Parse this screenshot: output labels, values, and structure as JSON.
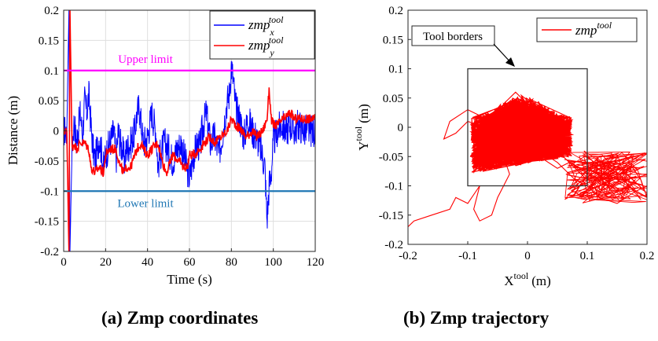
{
  "chart_data": [
    {
      "type": "line",
      "caption": "(a)  Zmp coordinates",
      "xlabel": "Time (s)",
      "ylabel": "Distance (m)",
      "xlim": [
        0,
        120
      ],
      "ylim": [
        -0.2,
        0.2
      ],
      "xticks": [
        "0",
        "20",
        "40",
        "60",
        "80",
        "100",
        "120"
      ],
      "yticks": [
        "-0.2",
        "-0.15",
        "-0.1",
        "-0.05",
        "0",
        "0.05",
        "0.1",
        "0.15",
        "0.2"
      ],
      "grid": true,
      "legend_position": "top-right",
      "legend": [
        {
          "base": "zmp",
          "sub": "x",
          "sup": "tool",
          "color": "#0000ff"
        },
        {
          "base": "zmp",
          "sub": "y",
          "sup": "tool",
          "color": "#ff0000"
        }
      ],
      "series": [
        {
          "color": "#0000ff",
          "x": [
            0,
            1.5,
            2.5,
            3,
            4,
            5,
            6,
            8,
            9,
            10,
            11,
            12,
            13,
            14,
            15,
            17,
            19,
            20,
            22,
            24,
            25,
            26,
            27,
            28,
            29,
            30,
            32,
            34,
            35,
            36,
            38,
            40,
            42,
            44,
            45,
            46,
            48,
            50,
            52,
            54,
            56,
            58,
            60,
            62,
            64,
            65,
            66,
            68,
            70,
            72,
            74,
            76,
            78,
            79,
            80,
            81,
            82,
            84,
            86,
            88,
            90,
            92,
            94,
            96,
            97,
            98,
            99,
            100,
            102,
            104,
            106,
            108,
            110,
            112,
            115,
            120
          ],
          "y": [
            0,
            0,
            0.2,
            -0.2,
            -0.03,
            0.02,
            -0.02,
            0.03,
            -0.01,
            0.05,
            0.03,
            0.06,
            0.01,
            -0.03,
            -0.05,
            -0.01,
            -0.06,
            -0.04,
            -0.02,
            0.0,
            -0.05,
            0.0,
            -0.02,
            -0.03,
            -0.05,
            -0.03,
            -0.02,
            0.0,
            0.03,
            0.04,
            -0.02,
            -0.01,
            0.03,
            0.0,
            -0.06,
            -0.04,
            -0.02,
            -0.03,
            -0.05,
            -0.03,
            -0.02,
            -0.05,
            -0.08,
            -0.04,
            -0.02,
            -0.03,
            0.0,
            0.03,
            -0.02,
            -0.01,
            -0.04,
            0.0,
            0.05,
            0.06,
            0.11,
            0.08,
            0.04,
            0.02,
            -0.01,
            0.02,
            0.0,
            -0.01,
            -0.03,
            -0.06,
            -0.15,
            -0.09,
            -0.07,
            -0.02,
            0.0,
            0.01,
            0.0,
            0.01,
            0.0,
            0.01,
            0.0,
            0.0
          ]
        },
        {
          "color": "#ff0000",
          "x": [
            0,
            1.5,
            2.5,
            3,
            4,
            5,
            6,
            8,
            10,
            12,
            13,
            15,
            17,
            19,
            20,
            22,
            25,
            27,
            29,
            30,
            32,
            35,
            37,
            38,
            40,
            42,
            45,
            47,
            49,
            50,
            52,
            55,
            57,
            59,
            60,
            62,
            65,
            67,
            70,
            72,
            75,
            78,
            80,
            82,
            85,
            87,
            90,
            92,
            95,
            97,
            98,
            99,
            100,
            102,
            105,
            108,
            110,
            112,
            115,
            120
          ],
          "y": [
            0,
            0,
            -0.2,
            0.2,
            -0.03,
            -0.02,
            -0.03,
            -0.02,
            -0.02,
            -0.03,
            -0.06,
            -0.07,
            -0.06,
            -0.07,
            -0.04,
            -0.03,
            -0.03,
            -0.06,
            -0.07,
            -0.06,
            -0.06,
            -0.03,
            -0.02,
            -0.03,
            -0.04,
            -0.03,
            -0.02,
            -0.05,
            -0.07,
            -0.06,
            -0.04,
            -0.05,
            -0.06,
            -0.06,
            -0.04,
            -0.04,
            -0.03,
            -0.02,
            -0.01,
            -0.02,
            -0.01,
            0.0,
            0.02,
            0.01,
            0.0,
            -0.01,
            0.0,
            -0.01,
            0.0,
            0.02,
            0.07,
            0.02,
            0.01,
            0.01,
            0.02,
            0.03,
            0.02,
            0.02,
            0.02,
            0.02
          ]
        }
      ],
      "reference_lines": [
        {
          "label": "Upper limit",
          "y": 0.1,
          "color": "#ff00ff"
        },
        {
          "label": "Lower limit",
          "y": -0.1,
          "color": "#1f77b4"
        }
      ]
    },
    {
      "type": "line",
      "caption": "(b) Zmp trajectory",
      "xlabel": {
        "base": "X",
        "sup": "tool",
        "unit": "(m)"
      },
      "ylabel": {
        "base": "Y",
        "sup": "tool",
        "unit": "(m)"
      },
      "xlim": [
        -0.2,
        0.2
      ],
      "ylim": [
        -0.2,
        0.2
      ],
      "xticks": [
        "-0.2",
        "-0.1",
        "0",
        "0.1",
        "0.2"
      ],
      "yticks": [
        "-0.2",
        "-0.15",
        "-0.1",
        "-0.05",
        "0",
        "0.05",
        "0.1",
        "0.15",
        "0.2"
      ],
      "grid": false,
      "legend_position": "top-right",
      "legend": [
        {
          "base": "zmp",
          "sup": "tool",
          "color": "#ff0000"
        }
      ],
      "annotation": {
        "text": "Tool borders"
      },
      "tool_border": {
        "x": [
          -0.1,
          0.1
        ],
        "y": [
          -0.1,
          0.1
        ],
        "color": "#333333"
      },
      "series": [
        {
          "color": "#ff0000",
          "x": [
            -0.2,
            -0.19,
            -0.16,
            -0.13,
            -0.12,
            -0.1,
            -0.08,
            -0.09,
            -0.08,
            -0.06,
            -0.05,
            -0.04,
            -0.03,
            -0.04,
            -0.02,
            -0.01,
            0.0,
            -0.02,
            -0.04,
            -0.02,
            0.0,
            0.02,
            0.05,
            0.07,
            0.09,
            0.11,
            0.13,
            0.15,
            0.17,
            0.19,
            0.2,
            0.18,
            0.15,
            0.12,
            0.1,
            0.08,
            0.05,
            0.02,
            -0.01,
            -0.04,
            -0.07,
            -0.1,
            -0.12,
            -0.14,
            -0.13,
            -0.1,
            -0.08,
            -0.06,
            -0.03,
            0.0,
            0.03,
            0.06,
            0.08,
            0.1,
            0.12,
            0.14,
            0.16,
            0.18,
            0.2
          ],
          "y": [
            -0.17,
            -0.16,
            -0.15,
            -0.14,
            -0.12,
            -0.13,
            -0.1,
            -0.14,
            -0.16,
            -0.15,
            -0.12,
            -0.1,
            -0.08,
            -0.05,
            -0.02,
            0.02,
            0.04,
            0.06,
            0.04,
            0.0,
            -0.03,
            -0.05,
            -0.07,
            -0.06,
            -0.08,
            -0.07,
            -0.06,
            -0.08,
            -0.06,
            -0.09,
            -0.12,
            -0.11,
            -0.13,
            -0.12,
            -0.1,
            -0.09,
            -0.06,
            -0.04,
            -0.02,
            0.01,
            0.0,
            0.01,
            -0.01,
            -0.02,
            0.01,
            0.03,
            0.02,
            0.0,
            -0.01,
            -0.02,
            -0.04,
            -0.05,
            -0.07,
            -0.09,
            -0.08,
            -0.1,
            -0.09,
            -0.11,
            -0.1
          ]
        }
      ]
    }
  ]
}
